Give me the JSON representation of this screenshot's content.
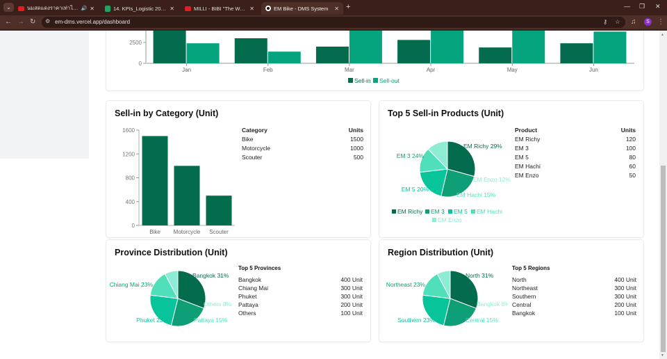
{
  "browser": {
    "tabs": [
      {
        "title": "นมสดแดงราคาเท่าไหร่ \"โปลาส\" สร้าง",
        "icon": "youtube-icon",
        "audio": true
      },
      {
        "title": "14. KPIs_Logistic 2024 - Google",
        "icon": "sheets-icon"
      },
      {
        "title": "MILLI - BIBI \"The Weekend\" (Re",
        "icon": "youtube-icon"
      },
      {
        "title": "EM Bike - DMS System",
        "icon": "site-icon",
        "active": true
      }
    ],
    "url": "em-dms.vercel.app/dashboard",
    "profile_initial": "S"
  },
  "colors": {
    "dark": "#046c4e",
    "mid": "#05a37e",
    "s1": "#046c4e",
    "s2": "#0e9f76",
    "s3": "#08c49a",
    "s4": "#4fdfb9",
    "s5": "#8fecd4"
  },
  "chart_data": [
    {
      "id": "monthly",
      "type": "bar",
      "title": "",
      "categories": [
        "Jan",
        "Feb",
        "Mar",
        "Apr",
        "May",
        "Jun"
      ],
      "series": [
        {
          "name": "Sell-in",
          "values": [
            4600,
            3000,
            2000,
            2800,
            1900,
            2400
          ]
        },
        {
          "name": "Sell-out",
          "values": [
            2400,
            1400,
            4800,
            4600,
            4700,
            3800
          ]
        }
      ],
      "yticks": [
        "0",
        "2500"
      ],
      "legend": "bottom-center"
    },
    {
      "id": "category",
      "type": "bar",
      "title": "Sell-in by Category (Unit)",
      "categories": [
        "Bike",
        "Motorcycle",
        "Scouter"
      ],
      "values": [
        1500,
        1000,
        500
      ],
      "ylim": [
        0,
        1600
      ],
      "yticks": [
        "0",
        "400",
        "800",
        "1200",
        "1600"
      ],
      "table": {
        "headers": [
          "Category",
          "Units"
        ],
        "rows": [
          [
            "Bike",
            "1500"
          ],
          [
            "Motorcycle",
            "1000"
          ],
          [
            "Scouter",
            "500"
          ]
        ]
      }
    },
    {
      "id": "products",
      "type": "pie",
      "title": "Top 5 Sell-in Products (Unit)",
      "labels": [
        "EM Richy",
        "EM 3",
        "EM 5",
        "EM Hachi",
        "EM Enzo"
      ],
      "values": [
        120,
        100,
        80,
        60,
        50
      ],
      "slice_labels": [
        "EM Richy 29%",
        "EM 3 24%",
        "EM 5 20%",
        "EM Hachi 15%",
        "EM Enzo 12%"
      ],
      "legend": "bottom",
      "table": {
        "headers": [
          "Product",
          "Units"
        ],
        "rows": [
          [
            "EM Richy",
            "120"
          ],
          [
            "EM 3",
            "100"
          ],
          [
            "EM 5",
            "80"
          ],
          [
            "EM Hachi",
            "60"
          ],
          [
            "EM Enzo",
            "50"
          ]
        ]
      }
    },
    {
      "id": "province",
      "type": "pie",
      "title": "Province Distribution (Unit)",
      "labels": [
        "Bangkok",
        "Chiang Mai",
        "Phuket",
        "Pattaya",
        "Others"
      ],
      "values": [
        400,
        300,
        300,
        200,
        100
      ],
      "slice_labels": [
        "Bangkok 31%",
        "Chiang Mai 23%",
        "Phuket 23%",
        "Pattaya 15%",
        "Others 8%"
      ],
      "list_title": "Top 5 Provinces",
      "list": [
        [
          "Bangkok",
          "400 Unit"
        ],
        [
          "Chiang Mai",
          "300 Unit"
        ],
        [
          "Phuket",
          "300 Unit"
        ],
        [
          "Pattaya",
          "200 Unit"
        ],
        [
          "Others",
          "100 Unit"
        ]
      ]
    },
    {
      "id": "region",
      "type": "pie",
      "title": "Region Distribution (Unit)",
      "labels": [
        "North",
        "Northeast",
        "Southern",
        "Central",
        "Bangkok"
      ],
      "values": [
        400,
        300,
        300,
        200,
        100
      ],
      "slice_labels": [
        "North 31%",
        "Northeast 23%",
        "Southern 23%",
        "Central 15%",
        "Bangkok 8%"
      ],
      "list_title": "Top 5 Regions",
      "list": [
        [
          "North",
          "400 Unit"
        ],
        [
          "Northeast",
          "300 Unit"
        ],
        [
          "Southern",
          "300 Unit"
        ],
        [
          "Central",
          "200 Unit"
        ],
        [
          "Bangkok",
          "100 Unit"
        ]
      ]
    }
  ]
}
